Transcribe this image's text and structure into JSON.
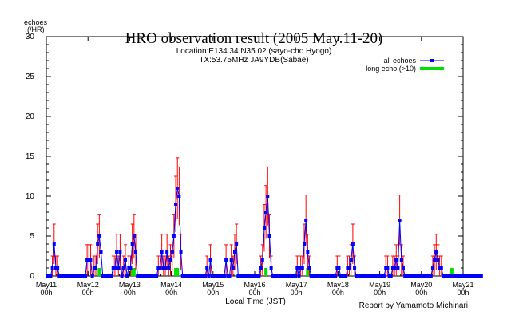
{
  "chart_data": {
    "type": "line",
    "title": "HRO observation result (2005 May.11-20)",
    "subtitle_lines": [
      "Location:E134.34 N35.02 (sayo-cho Hyogo)",
      "TX:53.75MHz JA9YDB(Sabae)"
    ],
    "ylabel_lines": [
      "echoes",
      "(/HR)"
    ],
    "xlabel": "Local Time (JST)",
    "credit": "Report by Yamamoto Michinari",
    "ylim": [
      0,
      30
    ],
    "yticks": [
      0,
      5,
      10,
      15,
      20,
      25,
      30
    ],
    "xlim": [
      0,
      240
    ],
    "xticks": [
      {
        "x": 0,
        "day": "May11",
        "hour": "00h"
      },
      {
        "x": 24,
        "day": "May12",
        "hour": "00h"
      },
      {
        "x": 48,
        "day": "May13",
        "hour": "00h"
      },
      {
        "x": 72,
        "day": "May14",
        "hour": "00h"
      },
      {
        "x": 96,
        "day": "May15",
        "hour": "00h"
      },
      {
        "x": 120,
        "day": "May16",
        "hour": "00h"
      },
      {
        "x": 144,
        "day": "May17",
        "hour": "00h"
      },
      {
        "x": 168,
        "day": "May18",
        "hour": "00h"
      },
      {
        "x": 192,
        "day": "May19",
        "hour": "00h"
      },
      {
        "x": 216,
        "day": "May20",
        "hour": "00h"
      },
      {
        "x": 240,
        "day": "May21",
        "hour": "00h"
      }
    ],
    "legend_position": "top-right",
    "series": [
      {
        "name": "all echoes",
        "color": "#0000ff",
        "values": [
          0,
          0,
          0,
          1,
          4,
          1,
          1,
          0,
          0,
          0,
          0,
          0,
          0,
          0,
          0,
          0,
          0,
          0,
          0,
          0,
          0,
          0,
          0,
          2,
          2,
          2,
          0,
          1,
          1,
          4,
          5,
          3,
          0,
          0,
          0,
          0,
          0,
          0,
          1,
          1,
          3,
          1,
          3,
          0,
          1,
          2,
          0,
          1,
          1,
          4,
          5,
          3,
          0,
          0,
          0,
          0,
          0,
          0,
          0,
          0,
          0,
          0,
          0,
          0,
          1,
          1,
          3,
          1,
          1,
          3,
          1,
          2,
          3,
          5,
          9,
          11,
          10,
          3,
          0,
          0,
          0,
          0,
          0,
          0,
          0,
          0,
          0,
          0,
          0,
          0,
          0,
          0,
          1,
          0,
          2,
          0,
          0,
          0,
          0,
          0,
          0,
          0,
          0,
          2,
          0,
          0,
          2,
          1,
          3,
          4,
          0,
          0,
          0,
          0,
          0,
          0,
          0,
          0,
          0,
          0,
          0,
          0,
          0,
          1,
          2,
          6,
          8,
          10,
          5,
          1,
          0,
          0,
          0,
          0,
          0,
          0,
          0,
          0,
          0,
          0,
          0,
          0,
          0,
          0,
          1,
          0,
          1,
          1,
          4,
          7,
          3,
          1,
          0,
          0,
          0,
          0,
          0,
          0,
          0,
          0,
          0,
          0,
          0,
          0,
          0,
          0,
          0,
          1,
          1,
          0,
          0,
          0,
          0,
          1,
          1,
          2,
          4,
          1,
          0,
          0,
          0,
          0,
          0,
          0,
          0,
          0,
          0,
          0,
          0,
          0,
          0,
          0,
          0,
          0,
          0,
          1,
          1,
          0,
          0,
          1,
          1,
          2,
          1,
          7,
          2,
          1,
          0,
          0,
          0,
          0,
          0,
          0,
          0,
          0,
          0,
          0,
          0,
          0,
          0,
          0,
          0,
          0,
          1,
          2,
          3,
          2,
          1,
          1,
          0,
          0,
          0,
          0,
          0,
          0,
          0,
          0,
          0,
          0,
          0,
          0,
          0,
          0,
          0,
          0,
          0,
          0,
          0,
          0,
          0,
          0,
          0
        ]
      },
      {
        "name": "long echo (>10)",
        "color": "#00e000",
        "values": [
          0,
          0,
          0,
          0,
          0,
          0,
          0,
          0,
          0,
          0,
          0,
          0,
          0,
          0,
          0,
          0,
          0,
          0,
          0,
          0,
          0,
          0,
          0,
          0,
          0,
          0,
          0,
          0,
          0,
          0,
          1,
          0,
          0,
          0,
          0,
          0,
          0,
          0,
          0,
          0,
          0,
          0,
          0,
          0,
          0,
          0,
          0,
          0,
          0,
          1,
          1,
          0,
          0,
          0,
          0,
          0,
          0,
          0,
          0,
          0,
          0,
          0,
          0,
          0,
          0,
          0,
          0,
          0,
          0,
          0,
          0,
          0,
          0,
          0,
          1,
          1,
          0,
          0,
          0,
          0,
          0,
          0,
          0,
          0,
          0,
          0,
          0,
          0,
          0,
          0,
          0,
          0,
          0,
          0,
          0,
          0,
          0,
          0,
          0,
          0,
          0,
          0,
          0,
          0,
          0,
          0,
          0,
          0,
          0,
          0,
          0,
          0,
          0,
          0,
          0,
          0,
          0,
          0,
          0,
          0,
          0,
          0,
          0,
          0,
          0,
          0,
          1,
          0,
          0,
          0,
          0,
          0,
          0,
          0,
          0,
          0,
          0,
          0,
          0,
          0,
          0,
          0,
          0,
          0,
          0,
          0,
          0,
          0,
          0,
          0,
          1,
          0,
          0,
          0,
          0,
          0,
          0,
          0,
          0,
          0,
          0,
          0,
          0,
          0,
          0,
          0,
          0,
          0,
          0,
          0,
          0,
          0,
          0,
          0,
          0,
          0,
          0,
          0,
          0,
          0,
          0,
          0,
          0,
          0,
          0,
          0,
          0,
          0,
          0,
          0,
          0,
          0,
          0,
          0,
          0,
          0,
          0,
          0,
          0,
          0,
          0,
          0,
          0,
          0,
          0,
          0,
          0,
          0,
          0,
          0,
          0,
          0,
          0,
          0,
          0,
          0,
          0,
          0,
          0,
          0,
          0,
          0,
          0,
          0,
          0,
          0,
          0,
          0,
          0,
          0,
          0,
          0,
          0,
          1,
          0,
          0,
          0,
          0,
          0,
          0,
          0,
          0,
          0,
          0,
          0,
          0,
          0,
          0,
          0,
          0,
          0,
          0,
          0,
          0
        ]
      }
    ],
    "error_bar_color": "#ff0000",
    "error_bars": "sqrt"
  }
}
